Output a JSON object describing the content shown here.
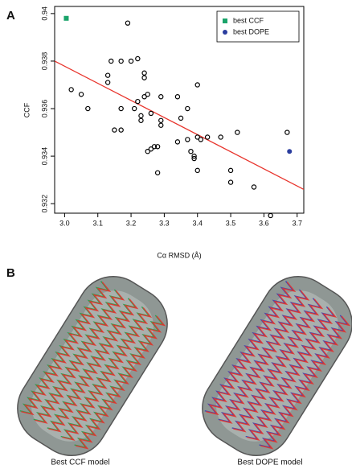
{
  "chart_data": {
    "type": "scatter",
    "panel_label": "A",
    "x_label": "Cα RMSD (Å)",
    "y_label": "CCF",
    "xlim": [
      2.97,
      3.72
    ],
    "ylim": [
      0.9316,
      0.9403
    ],
    "xticks": [
      {
        "value": 3,
        "label": "3.0"
      },
      3.1,
      3.2,
      3.3,
      3.4,
      3.5,
      3.6,
      3.7
    ],
    "yticks": [
      0.932,
      0.934,
      0.936,
      0.938,
      0.94
    ],
    "legend": "upper right",
    "series": [
      {
        "color": "#000000",
        "marker": "open-circle",
        "x": [
          3.02,
          3.05,
          3.07,
          3.13,
          3.13,
          3.14,
          3.15,
          3.17,
          3.17,
          3.17,
          3.19,
          3.2,
          3.22,
          3.21,
          3.22,
          3.23,
          3.23,
          3.24,
          3.24,
          3.24,
          3.25,
          3.26,
          3.25,
          3.26,
          3.27,
          3.28,
          3.28,
          3.29,
          3.29,
          3.29,
          3.34,
          3.34,
          3.35,
          3.37,
          3.37,
          3.38,
          3.39,
          3.39,
          3.4,
          3.4,
          3.4,
          3.41,
          3.43,
          3.47,
          3.52,
          3.5,
          3.5,
          3.57,
          3.62,
          3.67
        ],
        "values": [
          0.9368,
          0.9366,
          0.936,
          0.9374,
          0.9371,
          0.938,
          0.9351,
          0.936,
          0.938,
          0.9351,
          0.9396,
          0.938,
          0.9381,
          0.936,
          0.9363,
          0.9355,
          0.9357,
          0.9375,
          0.9373,
          0.9365,
          0.9342,
          0.9343,
          0.9366,
          0.9358,
          0.9344,
          0.9333,
          0.9344,
          0.9355,
          0.9353,
          0.9365,
          0.9365,
          0.9346,
          0.9356,
          0.936,
          0.9347,
          0.9342,
          0.934,
          0.9339,
          0.9334,
          0.9348,
          0.937,
          0.9347,
          0.9348,
          0.9348,
          0.935,
          0.9334,
          0.9329,
          0.9327,
          0.9315,
          0.935
        ]
      },
      {
        "name": "best CCF",
        "color": "#1aa36a",
        "marker": "square",
        "x": [
          3.005
        ],
        "values": [
          0.9398
        ]
      },
      {
        "name": "best DOPE",
        "color": "#2a3d9e",
        "marker": "circle",
        "x": [
          3.677
        ],
        "values": [
          0.9342
        ]
      }
    ],
    "trend_line": {
      "color": "#e8342c",
      "x": [
        2.97,
        3.72
      ],
      "values": [
        0.938,
        0.9326
      ]
    }
  },
  "panel_b": {
    "label": "B",
    "captions": [
      "Best CCF model",
      "Best DOPE model"
    ]
  }
}
